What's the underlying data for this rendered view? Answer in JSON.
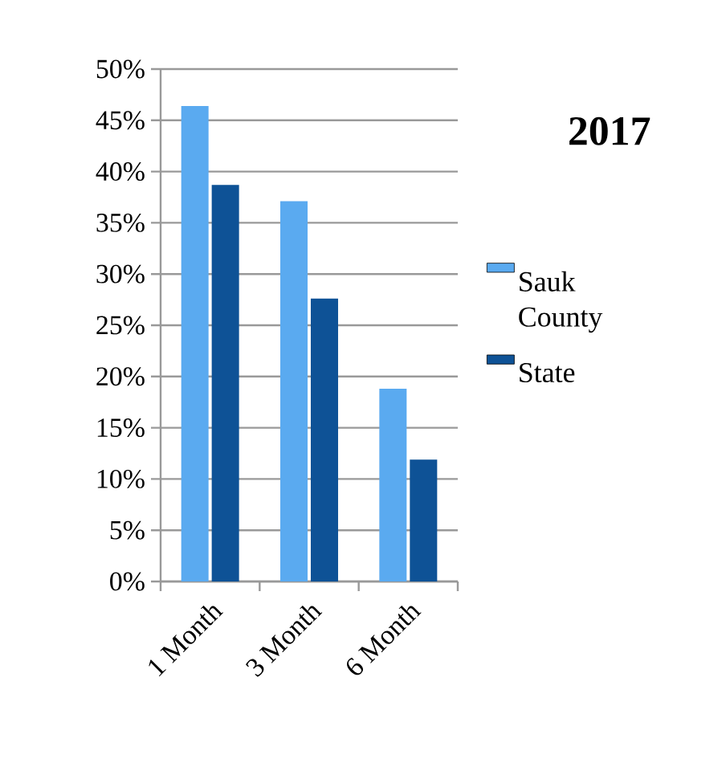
{
  "chart_data": {
    "type": "bar",
    "title": "2017",
    "categories": [
      "1 Month",
      "3 Month",
      "6 Month"
    ],
    "series": [
      {
        "name": "Sauk County",
        "color": "#5aaaf0",
        "values": [
          46.4,
          37.1,
          18.8
        ]
      },
      {
        "name": "State",
        "color": "#0e5296",
        "values": [
          38.7,
          27.6,
          11.9
        ]
      }
    ],
    "ylim": [
      0,
      50
    ],
    "yticks": [
      {
        "value": 0,
        "label": "0%"
      },
      {
        "value": 5,
        "label": "5%"
      },
      {
        "value": 10,
        "label": "10%"
      },
      {
        "value": 15,
        "label": "15%"
      },
      {
        "value": 20,
        "label": "20%"
      },
      {
        "value": 25,
        "label": "25%"
      },
      {
        "value": 30,
        "label": "30%"
      },
      {
        "value": 35,
        "label": "35%"
      },
      {
        "value": 40,
        "label": "40%"
      },
      {
        "value": 45,
        "label": "45%"
      },
      {
        "value": 50,
        "label": "50%"
      }
    ],
    "grid": "y",
    "legend": "right"
  }
}
